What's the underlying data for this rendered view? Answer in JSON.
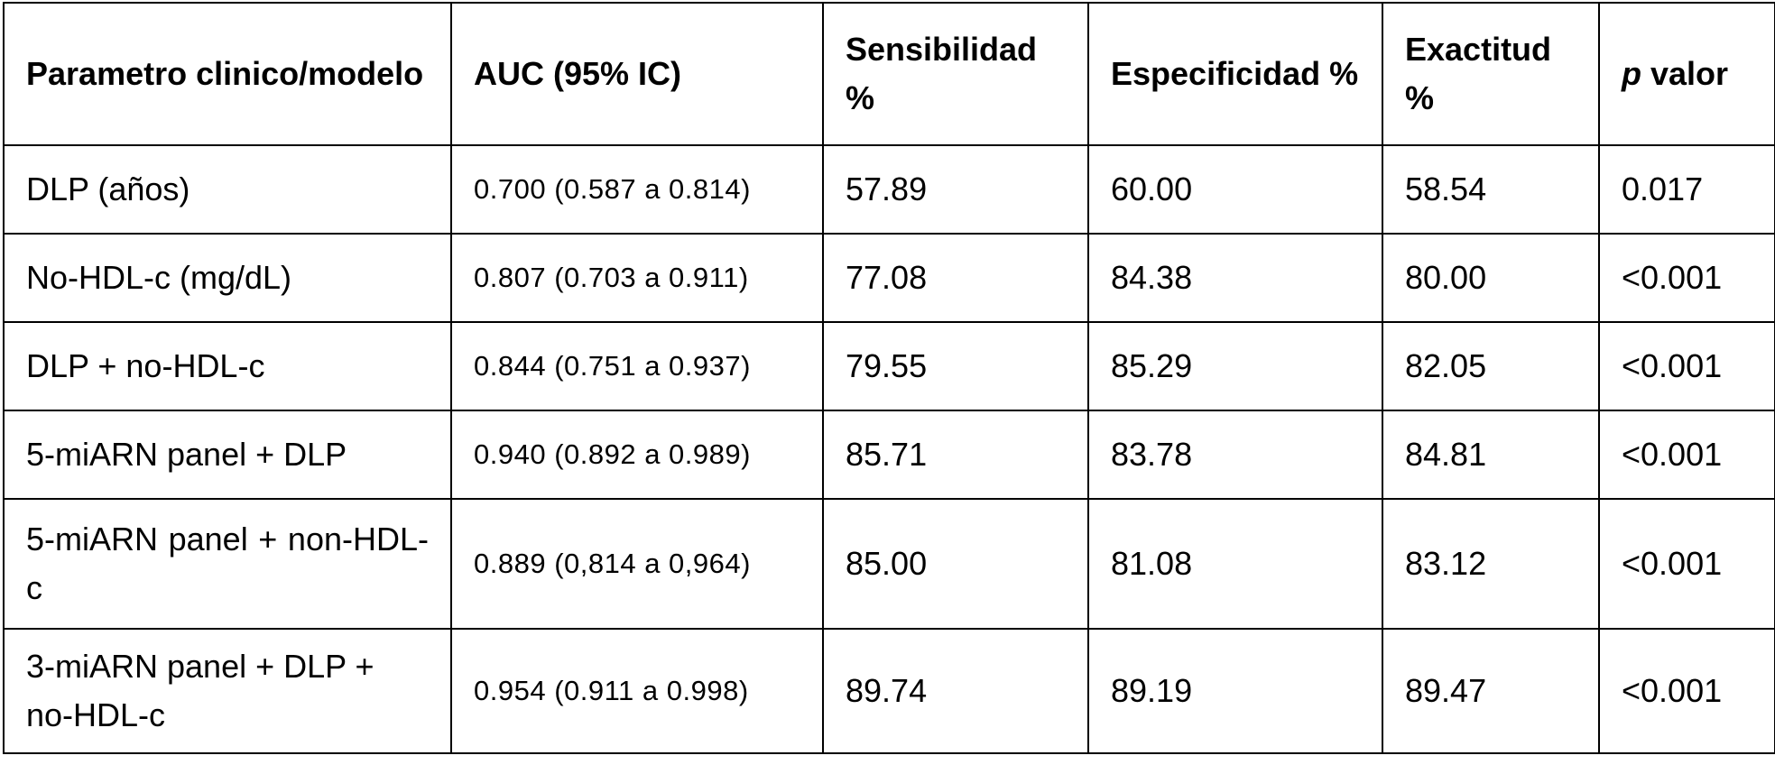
{
  "table": {
    "headers": {
      "param": "Parametro clinico/modelo",
      "auc": "AUC (95% IC)",
      "sens": "Sensibilidad %",
      "espec": "Especificidad %",
      "exact": "Exactitud %",
      "p_italic": "p",
      "p_rest": " valor"
    },
    "rows": [
      {
        "param": "DLP (años)",
        "auc": "0.700 (0.587 a 0.814)",
        "sens": "57.89",
        "espec": "60.00",
        "exact": "58.54",
        "p": "0.017"
      },
      {
        "param": "No-HDL-c (mg/dL)",
        "auc": "0.807 (0.703 a 0.911)",
        "sens": "77.08",
        "espec": "84.38",
        "exact": "80.00",
        "p": "<0.001"
      },
      {
        "param": "DLP + no-HDL-c",
        "auc": "0.844 (0.751 a 0.937)",
        "sens": "79.55",
        "espec": "85.29",
        "exact": "82.05",
        "p": "<0.001"
      },
      {
        "param": "5-miARN panel + DLP",
        "auc": "0.940 (0.892 a 0.989)",
        "sens": "85.71",
        "espec": "83.78",
        "exact": "84.81",
        "p": "<0.001"
      },
      {
        "param": "5-miARN panel + non-HDL-c",
        "auc": "0.889 (0,814 a 0,964)",
        "sens": "85.00",
        "espec": "81.08",
        "exact": "83.12",
        "p": "<0.001"
      },
      {
        "param": "3-miARN panel + DLP + no-HDL-c",
        "auc": "0.954 (0.911 a 0.998)",
        "sens": "89.74",
        "espec": "89.19",
        "exact": "89.47",
        "p": "<0.001"
      }
    ]
  }
}
